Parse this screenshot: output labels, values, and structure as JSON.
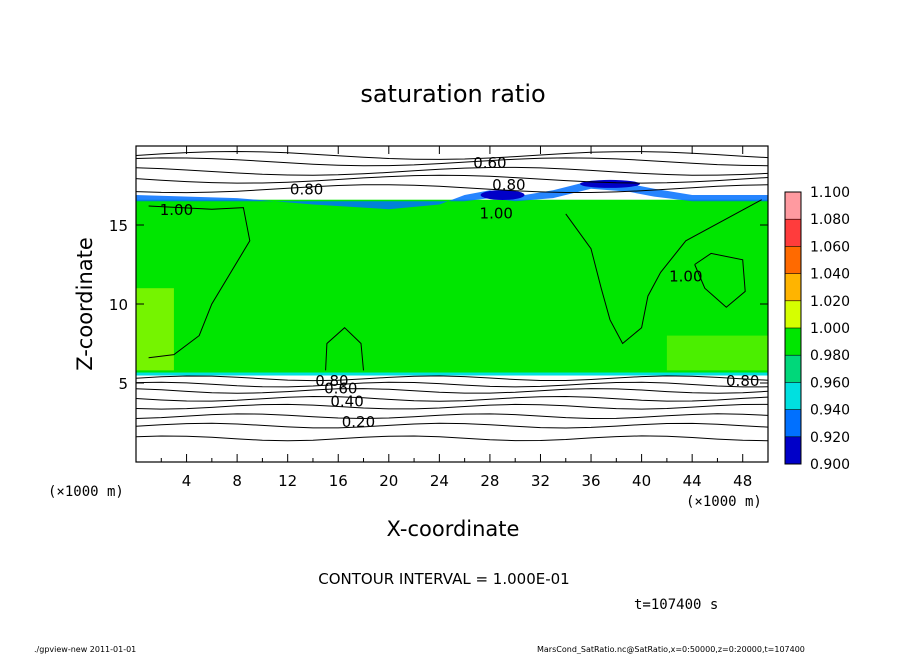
{
  "chart_data": {
    "type": "heatmap",
    "title": "saturation ratio",
    "xlabel": "X-coordinate",
    "ylabel": "Z-coordinate",
    "x_unit": "(×1000 m)",
    "y_unit": "(×1000 m)",
    "xlim": [
      0,
      50
    ],
    "ylim": [
      0,
      20
    ],
    "x_ticks": [
      4,
      8,
      12,
      16,
      20,
      24,
      28,
      32,
      36,
      40,
      44,
      48
    ],
    "y_ticks": [
      5,
      10,
      15
    ],
    "colorbar": {
      "levels": [
        "1.100",
        "1.080",
        "1.060",
        "1.040",
        "1.020",
        "1.000",
        "0.980",
        "0.960",
        "0.940",
        "0.920",
        "0.900"
      ],
      "colors": [
        "#ff9aa0",
        "#ff3c3c",
        "#ff6a00",
        "#ffb400",
        "#d6ff00",
        "#00e600",
        "#00d87a",
        "#00e0e0",
        "#0070ff",
        "#0000c8",
        "#6a1bb0"
      ]
    },
    "contour_labels": [
      {
        "text": "0.60",
        "x": 28,
        "z": 19.0
      },
      {
        "text": "0.80",
        "x": 13.5,
        "z": 17.3
      },
      {
        "text": "0.80",
        "x": 29.5,
        "z": 17.6
      },
      {
        "text": "1.00",
        "x": 3.2,
        "z": 16.0
      },
      {
        "text": "1.00",
        "x": 28.5,
        "z": 15.8
      },
      {
        "text": "1.00",
        "x": 43.5,
        "z": 11.8
      },
      {
        "text": "0.80",
        "x": 15.5,
        "z": 5.2
      },
      {
        "text": "0.60",
        "x": 16.2,
        "z": 4.7
      },
      {
        "text": "0.40",
        "x": 16.7,
        "z": 3.9
      },
      {
        "text": "0.20",
        "x": 17.6,
        "z": 2.6
      },
      {
        "text": "0.80",
        "x": 48.0,
        "z": 5.2
      }
    ],
    "contour_interval": "CONTOUR INTERVAL = 1.000E-01",
    "time_label": "t=107400 s"
  },
  "footer": {
    "left": "./gpview-new   2011-01-01",
    "right": "MarsCond_SatRatio.nc@SatRatio,x=0:50000,z=0:20000,t=107400"
  }
}
